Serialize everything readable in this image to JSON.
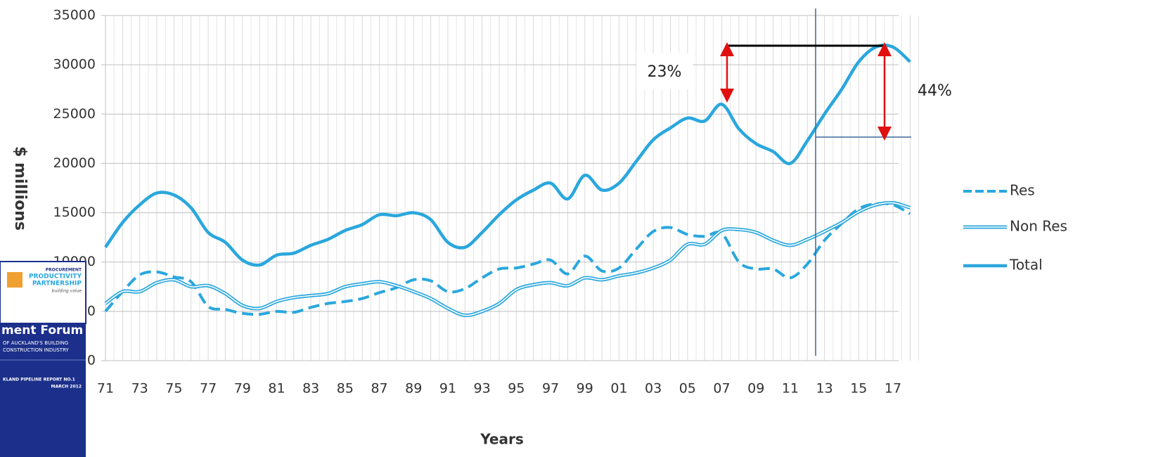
{
  "chart_data": {
    "type": "line",
    "y_label": "$ millions",
    "x_label": "Years",
    "categories": [
      "71",
      null,
      "73",
      null,
      "75",
      null,
      "77",
      null,
      "79",
      null,
      "81",
      null,
      "83",
      null,
      "85",
      null,
      "87",
      null,
      "89",
      null,
      "91",
      null,
      "93",
      null,
      "95",
      null,
      "97",
      null,
      "99",
      null,
      "01",
      null,
      "03",
      null,
      "05",
      null,
      "07",
      null,
      "09",
      null,
      "11",
      null,
      "13",
      null,
      "15",
      null,
      "17",
      null
    ],
    "series": [
      {
        "name": "Res",
        "color": "#2aa7dd",
        "line_style": "dashed",
        "values": [
          5000,
          7000,
          8700,
          9000,
          8500,
          8000,
          5500,
          5200,
          4800,
          4700,
          5000,
          4900,
          5400,
          5800,
          6000,
          6300,
          6900,
          7400,
          8200,
          8100,
          7000,
          7300,
          8400,
          9300,
          9400,
          9800,
          10200,
          8800,
          10600,
          9100,
          9400,
          11300,
          13100,
          13500,
          12800,
          12600,
          12900,
          10000,
          9300,
          9300,
          8400,
          9800,
          12200,
          13900,
          15400,
          15900,
          15800,
          14900
        ]
      },
      {
        "name": "Non Res",
        "color": "#2aa7dd",
        "line_style": "double",
        "values": [
          5800,
          7000,
          7000,
          7900,
          8200,
          7500,
          7600,
          6800,
          5600,
          5300,
          6000,
          6400,
          6600,
          6800,
          7500,
          7800,
          8000,
          7600,
          7000,
          6300,
          5300,
          4600,
          5000,
          5800,
          7200,
          7700,
          7900,
          7600,
          8400,
          8200,
          8600,
          8900,
          9400,
          10200,
          11800,
          11800,
          13200,
          13300,
          13000,
          12200,
          11700,
          12300,
          13100,
          14000,
          15100,
          15800,
          16000,
          15500
        ]
      },
      {
        "name": "Total",
        "color": "#2aa7dd",
        "line_style": "solid",
        "values": [
          11500,
          14000,
          15800,
          17000,
          16800,
          15500,
          13000,
          12000,
          10200,
          9700,
          10700,
          10900,
          11700,
          12300,
          13200,
          13800,
          14800,
          14700,
          15000,
          14300,
          12000,
          11500,
          13000,
          14800,
          16300,
          17300,
          18000,
          16400,
          18800,
          17300,
          18000,
          20200,
          22400,
          23600,
          24600,
          24300,
          26000,
          23500,
          22000,
          21200,
          20000,
          22300,
          25000,
          27500,
          30300,
          31800,
          31800,
          30300
        ]
      }
    ],
    "ylim": [
      0,
      35000
    ],
    "yticks": [
      0,
      5000,
      10000,
      15000,
      20000,
      25000,
      30000,
      35000
    ],
    "grid": true,
    "annotations": [
      "23%",
      "44%"
    ]
  },
  "cover": {
    "lines": [
      "PROCUREMENT",
      "PRODUCTIVITY",
      "PARTNERSHIP",
      "building value",
      "ment Forum",
      "OF AUCKLAND'S BUILDING",
      "CONSTRUCTION INDUSTRY",
      "KLAND PIPELINE REPORT NO.1",
      "MARCH 2012"
    ]
  }
}
